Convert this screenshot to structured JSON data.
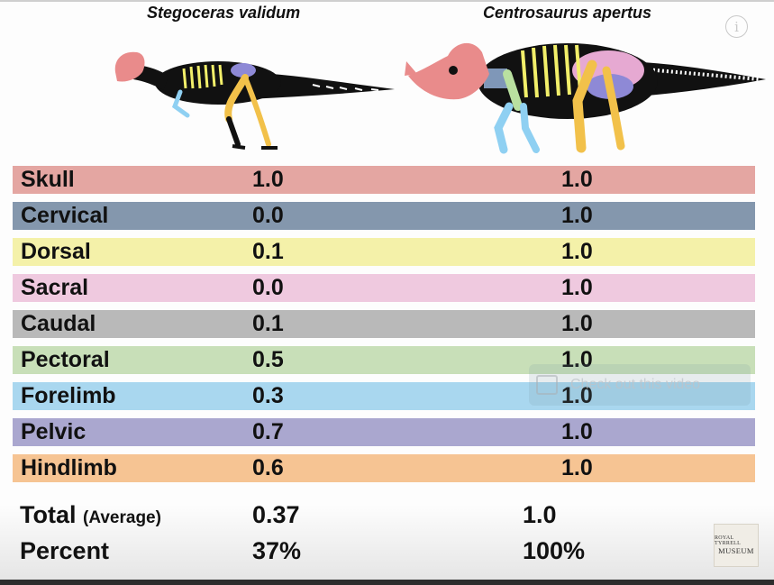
{
  "titles": {
    "left": "Stegoceras validum",
    "right": "Centrosaurus apertus"
  },
  "info_button": {
    "label": "i"
  },
  "rows": [
    {
      "label": "Skull",
      "v1": "1.0",
      "v2": "1.0",
      "color": "#e4a6a2"
    },
    {
      "label": "Cervical",
      "v1": "0.0",
      "v2": "1.0",
      "color": "#8497ad"
    },
    {
      "label": "Dorsal",
      "v1": "0.1",
      "v2": "1.0",
      "color": "#f4f1a9"
    },
    {
      "label": "Sacral",
      "v1": "0.0",
      "v2": "1.0",
      "color": "#efc9df"
    },
    {
      "label": "Caudal",
      "v1": "0.1",
      "v2": "1.0",
      "color": "#b9b9b9"
    },
    {
      "label": "Pectoral",
      "v1": "0.5",
      "v2": "1.0",
      "color": "#c8dfb8"
    },
    {
      "label": "Forelimb",
      "v1": "0.3",
      "v2": "1.0",
      "color": "#a9d7ef"
    },
    {
      "label": "Pelvic",
      "v1": "0.7",
      "v2": "1.0",
      "color": "#aaa7cf"
    },
    {
      "label": "Hindlimb",
      "v1": "0.6",
      "v2": "1.0",
      "color": "#f6c493"
    }
  ],
  "summary": {
    "total_label": "Total",
    "total_note": "(Average)",
    "total_v1": "0.37",
    "total_v2": "1.0",
    "percent_label": "Percent",
    "percent_v1": "37%",
    "percent_v2": "100%"
  },
  "overlay": {
    "text": "Check out this video"
  },
  "logo": {
    "line1": "ROYAL TYRRELL",
    "line2": "MUSEUM"
  },
  "bone_colors": {
    "skull": "#e98b8b",
    "cervical": "#7f97b8",
    "dorsal": "#f2ef6a",
    "sacral": "#e6a9d2",
    "caudal": "#ffffff",
    "pectoral": "#b9e0a0",
    "forelimb": "#8fd0f2",
    "pelvic": "#8e89d6",
    "hindlimb": "#f2c14a",
    "body": "#111111"
  }
}
